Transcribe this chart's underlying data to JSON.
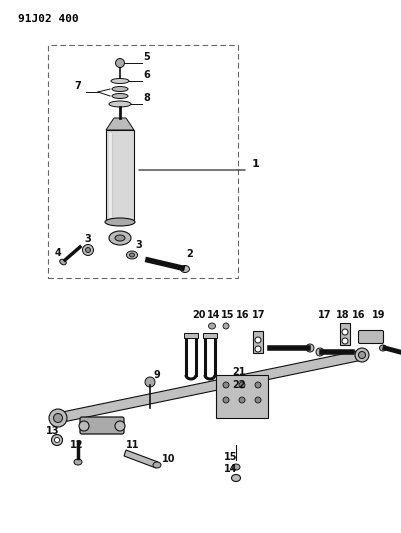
{
  "title": "91J02 400",
  "bg_color": "#ffffff",
  "fg_color": "#000000",
  "figsize": [
    4.02,
    5.33
  ],
  "dpi": 100
}
